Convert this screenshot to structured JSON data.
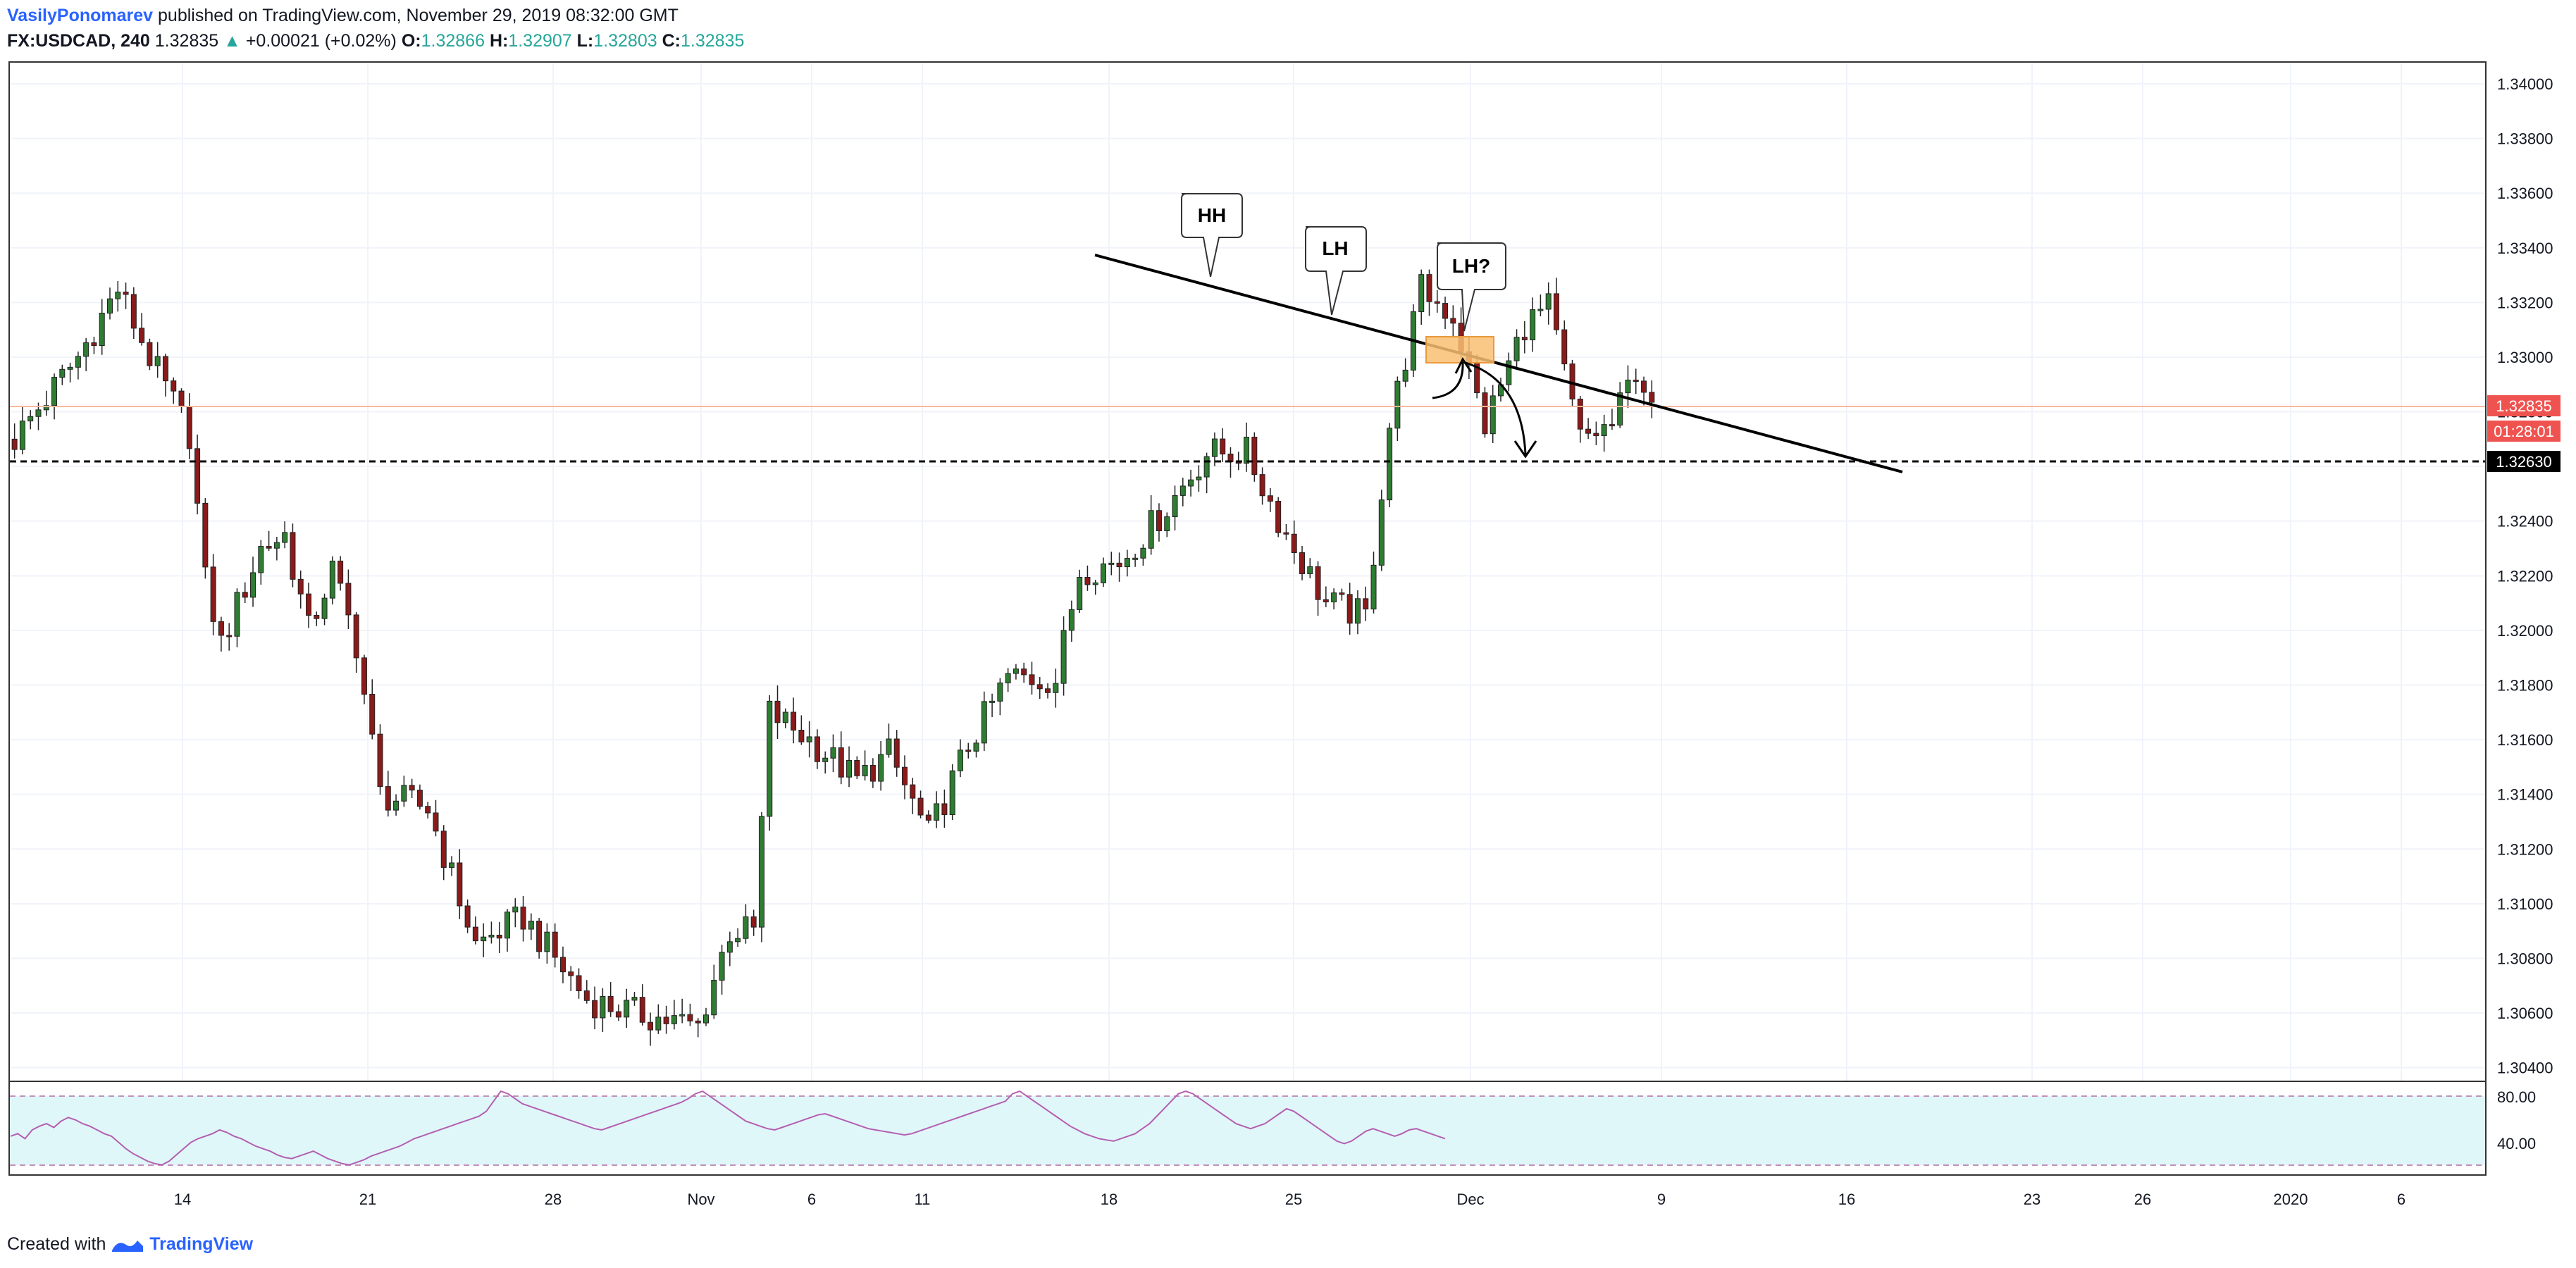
{
  "header": {
    "author": "VasilyPonomarev",
    "published_text": "published on TradingView.com, November 29, 2019 08:32:00 GMT",
    "symbol": "FX:USDCAD, 240",
    "last": "1.32835",
    "change_arrow": "▲",
    "change": "+0.00021 (+0.02%)",
    "o_label": "O:",
    "o_value": "1.32866",
    "h_label": "H:",
    "h_value": "1.32907",
    "l_label": "L:",
    "l_value": "1.32803",
    "c_label": "C:",
    "c_value": "1.32835"
  },
  "footer": {
    "created_with": "Created with",
    "brand": "TradingView"
  },
  "colors": {
    "up": "#26a69a",
    "down": "#ef5350",
    "candle_up": "#2e7d32",
    "candle_down": "#8b1a1a",
    "rsi_line": "#b45fb0",
    "rsi_band": "#e0f7fa",
    "price_badge": "#ef5350",
    "level_badge": "#000000",
    "supply_zone": "#f9bf72"
  },
  "chart_data": {
    "type": "candlestick",
    "symbol": "FX:USDCAD",
    "timeframe": "240",
    "x_ticks": [
      "14",
      "21",
      "28",
      "Nov",
      "6",
      "11",
      "18",
      "25",
      "Dec",
      "9",
      "16",
      "23",
      "26",
      "2020",
      "6"
    ],
    "y_ticks": [
      "1.34000",
      "1.33800",
      "1.33600",
      "1.33400",
      "1.33200",
      "1.33000",
      "1.32800",
      "1.32600",
      "1.32400",
      "1.32200",
      "1.32000",
      "1.31800",
      "1.31600",
      "1.31400",
      "1.31200",
      "1.31000",
      "1.30800",
      "1.30600",
      "1.30400"
    ],
    "y_range": [
      1.3035,
      1.3408
    ],
    "grid": true,
    "last_price": "1.32835",
    "countdown": "01:28:01",
    "horizontal_level": "1.32630",
    "annotations": [
      "HH",
      "LH",
      "LH?"
    ],
    "candle_count": 207,
    "close_path": [
      {
        "i": 0,
        "p": 1.327
      },
      {
        "i": 8,
        "p": 1.33
      },
      {
        "i": 13,
        "p": 1.3325
      },
      {
        "i": 17,
        "p": 1.33
      },
      {
        "i": 22,
        "p": 1.3272
      },
      {
        "i": 24,
        "p": 1.3218
      },
      {
        "i": 26,
        "p": 1.3195
      },
      {
        "i": 31,
        "p": 1.323
      },
      {
        "i": 34,
        "p": 1.3235
      },
      {
        "i": 37,
        "p": 1.32
      },
      {
        "i": 40,
        "p": 1.3222
      },
      {
        "i": 43,
        "p": 1.3195
      },
      {
        "i": 46,
        "p": 1.314
      },
      {
        "i": 52,
        "p": 1.3135
      },
      {
        "i": 58,
        "p": 1.3085
      },
      {
        "i": 64,
        "p": 1.3095
      },
      {
        "i": 72,
        "p": 1.3065
      },
      {
        "i": 78,
        "p": 1.306
      },
      {
        "i": 86,
        "p": 1.3055
      },
      {
        "i": 90,
        "p": 1.309
      },
      {
        "i": 93,
        "p": 1.309
      },
      {
        "i": 95,
        "p": 1.317
      },
      {
        "i": 100,
        "p": 1.316
      },
      {
        "i": 106,
        "p": 1.3145
      },
      {
        "i": 110,
        "p": 1.3155
      },
      {
        "i": 115,
        "p": 1.3125
      },
      {
        "i": 120,
        "p": 1.3158
      },
      {
        "i": 125,
        "p": 1.3183
      },
      {
        "i": 131,
        "p": 1.3182
      },
      {
        "i": 134,
        "p": 1.3222
      },
      {
        "i": 139,
        "p": 1.3225
      },
      {
        "i": 145,
        "p": 1.3245
      },
      {
        "i": 150,
        "p": 1.3265
      },
      {
        "i": 155,
        "p": 1.3265
      },
      {
        "i": 160,
        "p": 1.3235
      },
      {
        "i": 165,
        "p": 1.321
      },
      {
        "i": 170,
        "p": 1.3205
      },
      {
        "i": 173,
        "p": 1.3275
      },
      {
        "i": 177,
        "p": 1.3325
      },
      {
        "i": 181,
        "p": 1.3315
      },
      {
        "i": 185,
        "p": 1.3275
      },
      {
        "i": 190,
        "p": 1.3312
      },
      {
        "i": 193,
        "p": 1.3318
      },
      {
        "i": 197,
        "p": 1.327
      },
      {
        "i": 201,
        "p": 1.3275
      },
      {
        "i": 204,
        "p": 1.3296
      },
      {
        "i": 206,
        "p": 1.32835
      }
    ],
    "rsi": {
      "y_ticks": [
        "80.00",
        "40.00"
      ],
      "upper_band": 80,
      "lower_band": 30,
      "range": [
        20,
        90
      ],
      "values": [
        50,
        52,
        48,
        55,
        58,
        60,
        57,
        62,
        65,
        63,
        60,
        58,
        55,
        52,
        50,
        45,
        40,
        36,
        33,
        30,
        28,
        27,
        30,
        35,
        40,
        45,
        48,
        50,
        52,
        55,
        53,
        50,
        48,
        45,
        42,
        40,
        38,
        35,
        33,
        32,
        34,
        36,
        38,
        35,
        32,
        30,
        28,
        27,
        29,
        31,
        34,
        36,
        38,
        40,
        42,
        45,
        48,
        50,
        52,
        54,
        56,
        58,
        60,
        62,
        64,
        66,
        70,
        78,
        86,
        84,
        80,
        76,
        74,
        72,
        70,
        68,
        66,
        64,
        62,
        60,
        58,
        56,
        55,
        57,
        59,
        61,
        63,
        65,
        67,
        69,
        71,
        73,
        75,
        77,
        80,
        84,
        86,
        82,
        78,
        74,
        70,
        66,
        62,
        60,
        58,
        56,
        55,
        57,
        59,
        61,
        63,
        65,
        67,
        68,
        66,
        64,
        62,
        60,
        58,
        56,
        55,
        54,
        53,
        52,
        51,
        52,
        54,
        56,
        58,
        60,
        62,
        64,
        66,
        68,
        70,
        72,
        74,
        76,
        78,
        84,
        86,
        82,
        78,
        74,
        70,
        66,
        62,
        58,
        55,
        52,
        50,
        48,
        47,
        46,
        48,
        50,
        52,
        56,
        60,
        66,
        72,
        78,
        84,
        86,
        84,
        80,
        76,
        72,
        68,
        64,
        60,
        58,
        56,
        58,
        60,
        64,
        68,
        72,
        70,
        66,
        62,
        58,
        54,
        50,
        46,
        44,
        46,
        50,
        54,
        56,
        54,
        52,
        50,
        52,
        55,
        56,
        54,
        52,
        50,
        48
      ]
    }
  }
}
